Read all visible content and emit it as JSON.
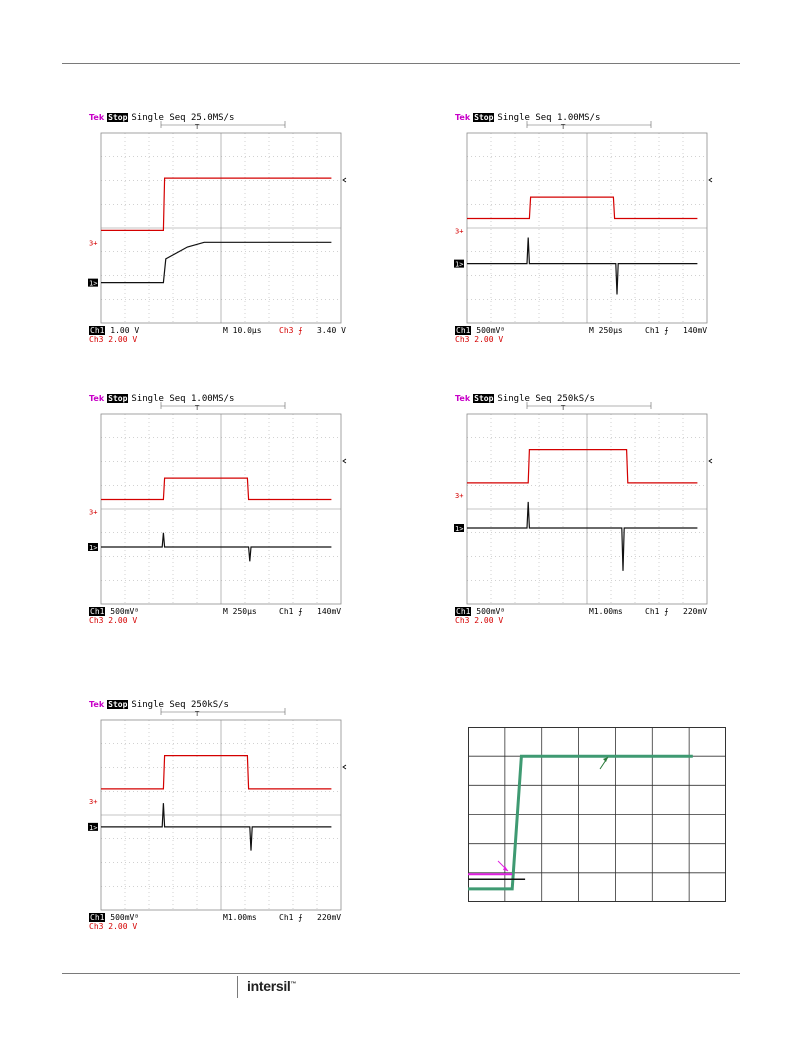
{
  "scopes": [
    {
      "id": "scope-1",
      "header": {
        "brand": "Tek",
        "state": "Stop",
        "mode": "Single Seq",
        "rate": "25.0MS/s"
      },
      "footer": {
        "ch1_label": "Ch1",
        "ch1_scale": "1.00 V",
        "ch3_label": "Ch3",
        "ch3_scale": "2.00 V",
        "timebase": "M 10.0µs",
        "trigger": "Ch3 ⨍",
        "level": "3.40 V"
      },
      "markers": {
        "ch3": "3+",
        "ch1": "1>"
      }
    },
    {
      "id": "scope-2",
      "header": {
        "brand": "Tek",
        "state": "Stop",
        "mode": "Single Seq",
        "rate": "1.00MS/s"
      },
      "footer": {
        "ch1_label": "Ch1",
        "ch1_scale": "500mVᴮ",
        "ch3_label": "Ch3",
        "ch3_scale": "2.00 V",
        "timebase": "M  250µs",
        "trigger": "Ch1 ⨍",
        "level": "140mV"
      },
      "markers": {
        "ch3": "3+",
        "ch1": "1>"
      }
    },
    {
      "id": "scope-3",
      "header": {
        "brand": "Tek",
        "state": "Stop",
        "mode": "Single Seq",
        "rate": "1.00MS/s"
      },
      "footer": {
        "ch1_label": "Ch1",
        "ch1_scale": "500mVᴮ",
        "ch3_label": "Ch3",
        "ch3_scale": "2.00 V",
        "timebase": "M  250µs",
        "trigger": "Ch1 ⨍",
        "level": "140mV"
      },
      "markers": {
        "ch3": "3+",
        "ch1": "1>"
      }
    },
    {
      "id": "scope-4",
      "header": {
        "brand": "Tek",
        "state": "Stop",
        "mode": "Single Seq",
        "rate": "250kS/s"
      },
      "footer": {
        "ch1_label": "Ch1",
        "ch1_scale": "500mVᴮ",
        "ch3_label": "Ch3",
        "ch3_scale": "2.00 V",
        "timebase": "M1.00ms",
        "trigger": "Ch1 ⨍",
        "level": "220mV"
      },
      "markers": {
        "ch3": "3+",
        "ch1": "1>"
      }
    },
    {
      "id": "scope-5",
      "header": {
        "brand": "Tek",
        "state": "Stop",
        "mode": "Single Seq",
        "rate": "250kS/s"
      },
      "footer": {
        "ch1_label": "Ch1",
        "ch1_scale": "500mVᴮ",
        "ch3_label": "Ch3",
        "ch3_scale": "2.00 V",
        "timebase": "M1.00ms",
        "trigger": "Ch1 ⨍",
        "level": "220mV"
      },
      "markers": {
        "ch3": "3+",
        "ch1": "1>"
      }
    }
  ],
  "logo": {
    "text": "intersil"
  },
  "colors": {
    "ch3": "#d40000",
    "ch1": "#111111",
    "grid": "#8c8c8c",
    "curve_green": "#3f9a72",
    "curve_magenta": "#e020e0",
    "curve_black": "#111111"
  },
  "chart_data": [
    {
      "type": "line",
      "title": "",
      "grid": true,
      "divisions": {
        "x": 10,
        "y": 8
      },
      "series": [
        {
          "channel": "Ch3",
          "volts_per_div": 2.0,
          "x_div": [
            0,
            2.6,
            2.65,
            9.6
          ],
          "y_div": [
            -0.1,
            -0.1,
            2.1,
            2.1
          ]
        },
        {
          "channel": "Ch1",
          "volts_per_div": 1.0,
          "x_div": [
            0,
            2.6,
            2.7,
            3.6,
            4.3,
            9.6
          ],
          "y_div": [
            -2.3,
            -2.3,
            -1.3,
            -0.8,
            -0.6,
            -0.6
          ]
        }
      ]
    },
    {
      "type": "line",
      "title": "",
      "grid": true,
      "divisions": {
        "x": 10,
        "y": 8
      },
      "series": [
        {
          "channel": "Ch3",
          "volts_per_div": 2.0,
          "x_div": [
            0,
            2.6,
            2.65,
            6.1,
            6.15,
            9.6
          ],
          "y_div": [
            0.4,
            0.4,
            1.3,
            1.3,
            0.4,
            0.4
          ]
        },
        {
          "channel": "Ch1",
          "volts_per_div": 0.5,
          "x_div": [
            0,
            2.5,
            2.55,
            2.6,
            6.2,
            6.25,
            6.3,
            9.6
          ],
          "y_div": [
            -1.5,
            -1.5,
            -0.4,
            -1.5,
            -1.5,
            -2.8,
            -1.5,
            -1.5
          ]
        }
      ]
    },
    {
      "type": "line",
      "title": "",
      "grid": true,
      "divisions": {
        "x": 10,
        "y": 8
      },
      "series": [
        {
          "channel": "Ch3",
          "volts_per_div": 2.0,
          "x_div": [
            0,
            2.6,
            2.65,
            6.1,
            6.15,
            9.6
          ],
          "y_div": [
            0.4,
            0.4,
            1.3,
            1.3,
            0.4,
            0.4
          ]
        },
        {
          "channel": "Ch1",
          "volts_per_div": 0.5,
          "x_div": [
            0,
            2.55,
            2.6,
            2.65,
            6.15,
            6.2,
            6.25,
            9.6
          ],
          "y_div": [
            -1.6,
            -1.6,
            -1.0,
            -1.6,
            -1.6,
            -2.2,
            -1.6,
            -1.6
          ]
        }
      ]
    },
    {
      "type": "line",
      "title": "",
      "grid": true,
      "divisions": {
        "x": 10,
        "y": 8
      },
      "series": [
        {
          "channel": "Ch3",
          "volts_per_div": 2.0,
          "x_div": [
            0,
            2.55,
            2.6,
            6.65,
            6.7,
            9.6
          ],
          "y_div": [
            1.1,
            1.1,
            2.5,
            2.5,
            1.1,
            1.1
          ]
        },
        {
          "channel": "Ch1",
          "volts_per_div": 0.5,
          "x_div": [
            0,
            2.5,
            2.55,
            2.6,
            6.45,
            6.5,
            6.55,
            9.6
          ],
          "y_div": [
            -0.8,
            -0.8,
            0.3,
            -0.8,
            -0.8,
            -2.6,
            -0.8,
            -0.8
          ]
        }
      ]
    },
    {
      "type": "line",
      "title": "",
      "grid": true,
      "divisions": {
        "x": 10,
        "y": 8
      },
      "series": [
        {
          "channel": "Ch3",
          "volts_per_div": 2.0,
          "x_div": [
            0,
            2.6,
            2.65,
            6.1,
            6.15,
            9.6
          ],
          "y_div": [
            1.1,
            1.1,
            2.5,
            2.5,
            1.1,
            1.1
          ]
        },
        {
          "channel": "Ch1",
          "volts_per_div": 0.5,
          "x_div": [
            0,
            2.55,
            2.6,
            2.65,
            6.2,
            6.25,
            6.3,
            9.6
          ],
          "y_div": [
            -0.5,
            -0.5,
            0.5,
            -0.5,
            -0.5,
            -1.5,
            -0.5,
            -0.5
          ]
        }
      ]
    },
    {
      "type": "line",
      "title": "",
      "xlabel": "",
      "ylabel": "",
      "grid": true,
      "divisions": {
        "x": 7,
        "y": 6
      },
      "series": [
        {
          "color": "#3f9a72",
          "x": [
            0,
            1.2,
            1.45,
            6.1
          ],
          "y": [
            0.45,
            0.45,
            5.0,
            5.0
          ]
        },
        {
          "color": "#e020e0",
          "x": [
            0,
            1.2
          ],
          "y": [
            0.95,
            0.95
          ]
        },
        {
          "color": "#111111",
          "x": [
            0,
            1.55
          ],
          "y": [
            0.78,
            0.78
          ]
        }
      ]
    }
  ]
}
